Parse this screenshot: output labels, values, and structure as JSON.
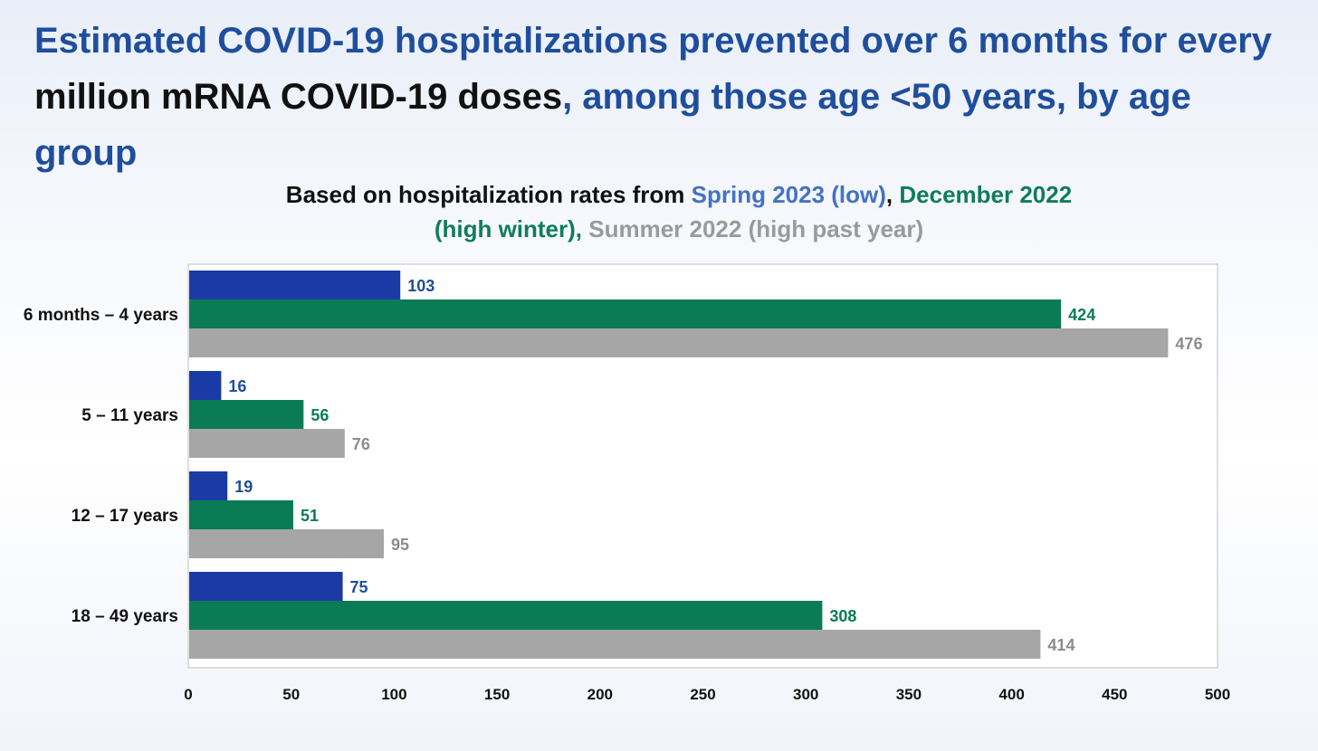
{
  "slide": {
    "title_parts": [
      {
        "text": "Estimated COVID-19 hospitalizations prevented over 6 months for every ",
        "highlight": false
      },
      {
        "text": "million mRNA COVID-19 doses",
        "highlight": true
      },
      {
        "text": ", among those age <50 years, by age group",
        "highlight": false
      }
    ],
    "subtitle_parts": [
      {
        "text": "Based on hospitalization rates from ",
        "style": "plain"
      },
      {
        "text": "Spring 2023 (low)",
        "style": "low"
      },
      {
        "text": ", ",
        "style": "plain"
      },
      {
        "text": "December 2022 (high winter)",
        "style": "winter"
      },
      {
        "text": ", ",
        "style": "winter"
      },
      {
        "text": "Summer 2022 (high past year)",
        "style": "summer"
      }
    ]
  },
  "chart_data": {
    "type": "bar",
    "orientation": "horizontal",
    "categories": [
      "6 months – 4 years",
      "5 – 11 years",
      "12 – 17 years",
      "18 – 49 years"
    ],
    "series": [
      {
        "color": "#1a3aa6",
        "label_color": "#1f4e9c",
        "values": [
          103,
          16,
          19,
          75
        ]
      },
      {
        "color": "#0b7b55",
        "label_color": "#0b7b55",
        "values": [
          424,
          56,
          51,
          308
        ]
      },
      {
        "color": "#a6a6a6",
        "label_color": "#8c8c8c",
        "values": [
          476,
          76,
          95,
          414
        ]
      }
    ],
    "xlim": [
      0,
      500
    ],
    "xticks": [
      0,
      50,
      100,
      150,
      200,
      250,
      300,
      350,
      400,
      450,
      500
    ],
    "grid": false,
    "legend": "none",
    "data_labels": true
  }
}
